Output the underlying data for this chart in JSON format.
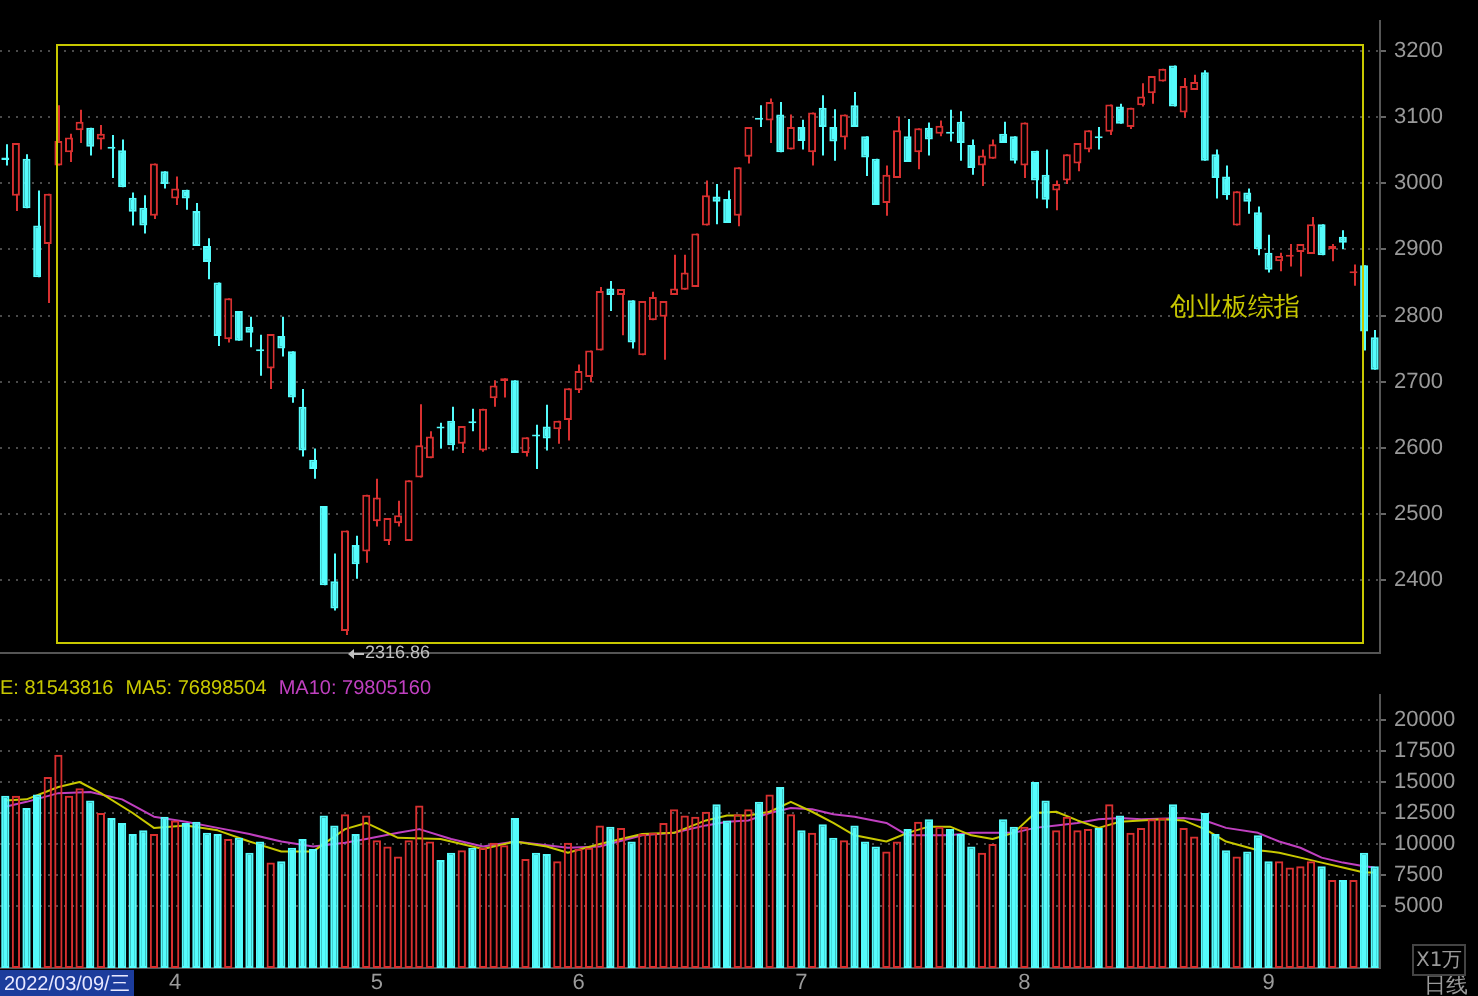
{
  "chart_data": [
    {
      "type": "candlestick",
      "categories": [
        null,
        null,
        null,
        null,
        null,
        null,
        null,
        null,
        null,
        null,
        null,
        null,
        null,
        null,
        null,
        null,
        null,
        null,
        null,
        null,
        null,
        null,
        null,
        null,
        null,
        null,
        null,
        null,
        null,
        null,
        null,
        null,
        null,
        null,
        null,
        null,
        null,
        null,
        null,
        null,
        null,
        null,
        null,
        null,
        null,
        null,
        null,
        null,
        null,
        null,
        null,
        null,
        null,
        null,
        null,
        null,
        null,
        null,
        null,
        null,
        null,
        null,
        null,
        null,
        null,
        null,
        null,
        null,
        null,
        null,
        null,
        null,
        null,
        null,
        null,
        null,
        null,
        null,
        null,
        null,
        null,
        null,
        null,
        null,
        null,
        null,
        null,
        null,
        null,
        null,
        null,
        null,
        null,
        null,
        null,
        null,
        null,
        null,
        null,
        null,
        null,
        null,
        null,
        null,
        null,
        null,
        null,
        null,
        null,
        null,
        null,
        null,
        null,
        null,
        null,
        null,
        null,
        null,
        null,
        null,
        null,
        null,
        null,
        null,
        null,
        null,
        null,
        null,
        null,
        null
      ],
      "ohlc": [
        [
          3039,
          3059,
          3027,
          3035
        ],
        [
          2981,
          3061,
          2958,
          3061
        ],
        [
          3037,
          3044,
          2962,
          2962
        ],
        [
          2936,
          2989,
          2858,
          2858
        ],
        [
          2908,
          2984,
          2819,
          2984
        ],
        [
          3027,
          3118,
          3027,
          3064
        ],
        [
          3047,
          3075,
          3032,
          3069
        ],
        [
          3080,
          3111,
          3061,
          3093
        ],
        [
          3084,
          3084,
          3042,
          3055
        ],
        [
          3066,
          3088,
          3051,
          3075
        ],
        [
          3054,
          3073,
          3008,
          3052
        ],
        [
          3050,
          3066,
          2994,
          2994
        ],
        [
          2978,
          2986,
          2936,
          2957
        ],
        [
          2963,
          2982,
          2924,
          2936
        ],
        [
          2951,
          3030,
          2946,
          3030
        ],
        [
          3018,
          3018,
          2992,
          2999
        ],
        [
          2977,
          3010,
          2967,
          2992
        ],
        [
          2990,
          2990,
          2960,
          2977
        ],
        [
          2958,
          2970,
          2905,
          2905
        ],
        [
          2905,
          2917,
          2855,
          2881
        ],
        [
          2850,
          2850,
          2754,
          2769
        ],
        [
          2764,
          2826,
          2759,
          2826
        ],
        [
          2807,
          2807,
          2762,
          2762
        ],
        [
          2783,
          2798,
          2752,
          2774
        ],
        [
          2748,
          2771,
          2709,
          2746
        ],
        [
          2720,
          2772,
          2689,
          2772
        ],
        [
          2769,
          2798,
          2738,
          2750
        ],
        [
          2746,
          2746,
          2668,
          2676
        ],
        [
          2662,
          2689,
          2587,
          2596
        ],
        [
          2582,
          2599,
          2553,
          2568
        ],
        [
          2512,
          2512,
          2392,
          2392
        ],
        [
          2398,
          2440,
          2354,
          2357
        ],
        [
          2323,
          2475,
          2316.86,
          2475
        ],
        [
          2453,
          2467,
          2402,
          2424
        ],
        [
          2443,
          2529,
          2426,
          2529
        ],
        [
          2489,
          2553,
          2481,
          2525
        ],
        [
          2459,
          2494,
          2453,
          2494
        ],
        [
          2486,
          2520,
          2481,
          2498
        ],
        [
          2459,
          2551,
          2459,
          2551
        ],
        [
          2555,
          2666,
          2555,
          2604
        ],
        [
          2584,
          2625,
          2584,
          2617
        ],
        [
          2631,
          2638,
          2599,
          2629
        ],
        [
          2641,
          2662,
          2596,
          2604
        ],
        [
          2606,
          2633,
          2592,
          2633
        ],
        [
          2639,
          2659,
          2625,
          2637
        ],
        [
          2596,
          2659,
          2594,
          2659
        ],
        [
          2675,
          2702,
          2662,
          2694
        ],
        [
          2701,
          2705,
          2676,
          2705
        ],
        [
          2702,
          2702,
          2592,
          2592
        ],
        [
          2592,
          2616,
          2587,
          2616
        ],
        [
          2619,
          2635,
          2568,
          2617
        ],
        [
          2632,
          2665,
          2596,
          2614
        ],
        [
          2628,
          2641,
          2606,
          2641
        ],
        [
          2642,
          2690,
          2611,
          2690
        ],
        [
          2687,
          2726,
          2683,
          2716
        ],
        [
          2707,
          2747,
          2699,
          2747
        ],
        [
          2747,
          2843,
          2747,
          2837
        ],
        [
          2841,
          2852,
          2807,
          2831
        ],
        [
          2831,
          2840,
          2770,
          2840
        ],
        [
          2823,
          2823,
          2750,
          2759
        ],
        [
          2740,
          2822,
          2740,
          2822
        ],
        [
          2793,
          2836,
          2793,
          2828
        ],
        [
          2798,
          2822,
          2733,
          2822
        ],
        [
          2831,
          2892,
          2831,
          2841
        ],
        [
          2839,
          2892,
          2839,
          2865
        ],
        [
          2843,
          2924,
          2843,
          2924
        ],
        [
          2936,
          3004,
          2936,
          2982
        ],
        [
          2980,
          2999,
          2938,
          2972
        ],
        [
          2976,
          2989,
          2940,
          2940
        ],
        [
          2951,
          3024,
          2935,
          3024
        ],
        [
          3040,
          3085,
          3030,
          3085
        ],
        [
          3098,
          3118,
          3085,
          3096
        ],
        [
          3095,
          3128,
          3061,
          3123
        ],
        [
          3104,
          3123,
          3047,
          3047
        ],
        [
          3051,
          3104,
          3051,
          3085
        ],
        [
          3085,
          3096,
          3051,
          3064
        ],
        [
          3047,
          3107,
          3027,
          3107
        ],
        [
          3114,
          3133,
          3042,
          3085
        ],
        [
          3085,
          3112,
          3034,
          3063
        ],
        [
          3069,
          3104,
          3051,
          3104
        ],
        [
          3118,
          3138,
          3085,
          3085
        ],
        [
          3071,
          3071,
          3011,
          3039
        ],
        [
          3037,
          3037,
          2967,
          2967
        ],
        [
          2970,
          3027,
          2951,
          3013
        ],
        [
          3008,
          3101,
          3008,
          3080
        ],
        [
          3071,
          3097,
          3032,
          3032
        ],
        [
          3047,
          3083,
          3021,
          3083
        ],
        [
          3084,
          3092,
          3042,
          3066
        ],
        [
          3075,
          3095,
          3071,
          3087
        ],
        [
          3077,
          3111,
          3063,
          3075
        ],
        [
          3093,
          3109,
          3034,
          3061
        ],
        [
          3058,
          3066,
          3013,
          3023
        ],
        [
          3027,
          3051,
          2996,
          3042
        ],
        [
          3037,
          3066,
          3037,
          3059
        ],
        [
          3075,
          3093,
          3061,
          3061
        ],
        [
          3071,
          3071,
          3030,
          3034
        ],
        [
          3027,
          3092,
          3008,
          3092
        ],
        [
          3049,
          3049,
          2977,
          3004
        ],
        [
          3013,
          3051,
          2962,
          2975
        ],
        [
          2989,
          3004,
          2959,
          2999
        ],
        [
          3004,
          3044,
          2999,
          3044
        ],
        [
          3030,
          3061,
          3018,
          3061
        ],
        [
          3051,
          3080,
          3047,
          3080
        ],
        [
          3070,
          3085,
          3051,
          3068
        ],
        [
          3078,
          3119,
          3073,
          3119
        ],
        [
          3116,
          3120,
          3090,
          3090
        ],
        [
          3085,
          3114,
          3082,
          3114
        ],
        [
          3118,
          3151,
          3116,
          3131
        ],
        [
          3136,
          3162,
          3120,
          3162
        ],
        [
          3154,
          3173,
          3154,
          3173
        ],
        [
          3178,
          3178,
          3116,
          3116
        ],
        [
          3107,
          3159,
          3099,
          3147
        ],
        [
          3141,
          3164,
          3141,
          3153
        ],
        [
          3168,
          3171,
          3034,
          3034
        ],
        [
          3044,
          3051,
          2977,
          3008
        ],
        [
          3010,
          3027,
          2975,
          2982
        ],
        [
          2936,
          2988,
          2936,
          2988
        ],
        [
          2986,
          2992,
          2954,
          2972
        ],
        [
          2956,
          2965,
          2891,
          2900
        ],
        [
          2895,
          2922,
          2865,
          2869
        ],
        [
          2882,
          2895,
          2867,
          2890
        ],
        [
          2889,
          2908,
          2874,
          2892
        ],
        [
          2896,
          2908,
          2859,
          2908
        ],
        [
          2893,
          2949,
          2893,
          2938
        ],
        [
          2938,
          2938,
          2891,
          2891
        ],
        [
          2900,
          2908,
          2882,
          2905
        ],
        [
          2919,
          2929,
          2900,
          2910
        ],
        [
          2864,
          2877,
          2845,
          2866
        ],
        [
          2876,
          2876,
          2747,
          2776
        ],
        [
          2767,
          2778,
          2718,
          2718
        ]
      ],
      "colors": [
        "#54fcfc",
        "#d83030",
        "#54fcfc",
        "#54fcfc",
        "#d83030",
        "#d83030",
        "#d83030",
        "#d83030",
        "#54fcfc",
        "#d83030",
        "#54fcfc",
        "#54fcfc",
        "#54fcfc",
        "#54fcfc",
        "#d83030",
        "#54fcfc",
        "#d83030",
        "#54fcfc",
        "#54fcfc",
        "#54fcfc",
        "#54fcfc",
        "#d83030",
        "#54fcfc",
        "#54fcfc",
        "#54fcfc",
        "#d83030",
        "#54fcfc",
        "#54fcfc",
        "#54fcfc",
        "#54fcfc",
        "#54fcfc",
        "#54fcfc",
        "#d83030",
        "#54fcfc",
        "#d83030",
        "#d83030",
        "#d83030",
        "#d83030",
        "#d83030",
        "#d83030",
        "#d83030",
        "#54fcfc",
        "#54fcfc",
        "#d83030",
        "#54fcfc",
        "#d83030",
        "#d83030",
        "#d83030",
        "#54fcfc",
        "#d83030",
        "#54fcfc",
        "#54fcfc",
        "#d83030",
        "#d83030",
        "#d83030",
        "#d83030",
        "#d83030",
        "#54fcfc",
        "#d83030",
        "#54fcfc",
        "#d83030",
        "#d83030",
        "#d83030",
        "#d83030",
        "#d83030",
        "#d83030",
        "#d83030",
        "#54fcfc",
        "#54fcfc",
        "#d83030",
        "#d83030",
        "#54fcfc",
        "#d83030",
        "#54fcfc",
        "#d83030",
        "#54fcfc",
        "#d83030",
        "#54fcfc",
        "#54fcfc",
        "#d83030",
        "#54fcfc",
        "#54fcfc",
        "#54fcfc",
        "#d83030",
        "#d83030",
        "#54fcfc",
        "#d83030",
        "#54fcfc",
        "#d83030",
        "#54fcfc",
        "#54fcfc",
        "#54fcfc",
        "#d83030",
        "#d83030",
        "#54fcfc",
        "#54fcfc",
        "#d83030",
        "#54fcfc",
        "#54fcfc",
        "#d83030",
        "#d83030",
        "#d83030",
        "#d83030",
        "#54fcfc",
        "#d83030",
        "#54fcfc",
        "#d83030",
        "#d83030",
        "#d83030",
        "#d83030",
        "#54fcfc",
        "#d83030",
        "#d83030",
        "#54fcfc",
        "#54fcfc",
        "#54fcfc",
        "#d83030",
        "#54fcfc",
        "#54fcfc",
        "#54fcfc",
        "#d83030",
        "#d83030",
        "#d83030",
        "#d83030",
        "#54fcfc",
        "#d83030",
        "#54fcfc",
        "#d83030",
        "#54fcfc",
        "#54fcfc"
      ],
      "ylim": [
        2290,
        3245
      ],
      "yticks": [
        2400,
        2500,
        2600,
        2700,
        2800,
        2900,
        3000,
        3100,
        3200
      ],
      "grid": "y",
      "tick_labels": "y",
      "annotations": [
        "创业板综指",
        "2316.86"
      ]
    },
    {
      "type": "bar",
      "categories": [
        null,
        null,
        null,
        null,
        null,
        null,
        null,
        null,
        null,
        null,
        null,
        null,
        null,
        null,
        null,
        null,
        "4",
        null,
        null,
        null,
        null,
        null,
        null,
        null,
        null,
        null,
        null,
        null,
        null,
        null,
        null,
        null,
        null,
        null,
        null,
        "5",
        null,
        null,
        null,
        null,
        null,
        null,
        null,
        null,
        null,
        null,
        null,
        null,
        null,
        null,
        null,
        null,
        null,
        null,
        "6",
        null,
        null,
        null,
        null,
        null,
        null,
        null,
        null,
        null,
        null,
        null,
        null,
        null,
        null,
        null,
        null,
        null,
        null,
        null,
        null,
        "7",
        null,
        null,
        null,
        null,
        null,
        null,
        null,
        null,
        null,
        null,
        null,
        null,
        null,
        null,
        null,
        null,
        null,
        null,
        null,
        null,
        "8",
        null,
        null,
        null,
        null,
        null,
        null,
        null,
        null,
        null,
        null,
        null,
        null,
        null,
        null,
        null,
        null,
        null,
        null,
        null,
        null,
        null,
        null,
        "9",
        null,
        null,
        null,
        null,
        null,
        null,
        null,
        null,
        null,
        null
      ],
      "series": [
        {
          "type": "bar",
          "values": [
            13900,
            13900,
            12900,
            14000,
            15400,
            17200,
            13900,
            14500,
            13500,
            12500,
            12100,
            11700,
            10800,
            11100,
            10800,
            12200,
            11900,
            11700,
            11800,
            10900,
            10800,
            10400,
            10500,
            9300,
            10200,
            8500,
            8600,
            9700,
            10400,
            9600,
            12300,
            11500,
            12400,
            10800,
            12300,
            10300,
            9800,
            9000,
            10300,
            13100,
            10200,
            8700,
            9300,
            9500,
            9700,
            9700,
            10100,
            9900,
            12100,
            8800,
            9300,
            9200,
            8600,
            10100,
            9600,
            9700,
            11500,
            11400,
            11300,
            10200,
            10800,
            10900,
            11700,
            12800,
            12300,
            12200,
            12600,
            13200,
            11900,
            12400,
            12800,
            13400,
            14000,
            14600,
            12400,
            11100,
            10900,
            11600,
            10500,
            10300,
            11500,
            10200,
            9800,
            9400,
            10200,
            11200,
            11800,
            12000,
            11400,
            11200,
            10800,
            9800,
            9300,
            10000,
            12000,
            11400,
            11400,
            15000,
            13500,
            11100,
            12200,
            11100,
            11200,
            11300,
            13200,
            12300,
            10900,
            11300,
            12000,
            12100,
            13200,
            11300,
            10600,
            12500,
            10800,
            9500,
            9000,
            9400,
            10700,
            8600,
            8600,
            8100,
            8200,
            8600,
            8200,
            7100,
            7100,
            7100,
            9300,
            8200
          ],
          "colors": [
            "#54fcfc",
            "#d83030",
            "#54fcfc",
            "#54fcfc",
            "#d83030",
            "#d83030",
            "#d83030",
            "#d83030",
            "#54fcfc",
            "#d83030",
            "#54fcfc",
            "#54fcfc",
            "#54fcfc",
            "#54fcfc",
            "#d83030",
            "#54fcfc",
            "#d83030",
            "#54fcfc",
            "#54fcfc",
            "#54fcfc",
            "#54fcfc",
            "#d83030",
            "#54fcfc",
            "#54fcfc",
            "#54fcfc",
            "#d83030",
            "#54fcfc",
            "#54fcfc",
            "#54fcfc",
            "#54fcfc",
            "#54fcfc",
            "#54fcfc",
            "#d83030",
            "#54fcfc",
            "#d83030",
            "#d83030",
            "#d83030",
            "#d83030",
            "#d83030",
            "#d83030",
            "#d83030",
            "#54fcfc",
            "#54fcfc",
            "#d83030",
            "#54fcfc",
            "#d83030",
            "#d83030",
            "#d83030",
            "#54fcfc",
            "#d83030",
            "#54fcfc",
            "#54fcfc",
            "#d83030",
            "#d83030",
            "#d83030",
            "#d83030",
            "#d83030",
            "#54fcfc",
            "#d83030",
            "#54fcfc",
            "#d83030",
            "#d83030",
            "#d83030",
            "#d83030",
            "#d83030",
            "#d83030",
            "#d83030",
            "#54fcfc",
            "#54fcfc",
            "#d83030",
            "#d83030",
            "#54fcfc",
            "#d83030",
            "#54fcfc",
            "#d83030",
            "#54fcfc",
            "#d83030",
            "#54fcfc",
            "#54fcfc",
            "#d83030",
            "#54fcfc",
            "#54fcfc",
            "#54fcfc",
            "#d83030",
            "#d83030",
            "#54fcfc",
            "#d83030",
            "#54fcfc",
            "#d83030",
            "#54fcfc",
            "#54fcfc",
            "#54fcfc",
            "#d83030",
            "#d83030",
            "#54fcfc",
            "#54fcfc",
            "#d83030",
            "#54fcfc",
            "#54fcfc",
            "#d83030",
            "#d83030",
            "#d83030",
            "#d83030",
            "#54fcfc",
            "#d83030",
            "#54fcfc",
            "#d83030",
            "#d83030",
            "#d83030",
            "#d83030",
            "#54fcfc",
            "#d83030",
            "#d83030",
            "#54fcfc",
            "#54fcfc",
            "#54fcfc",
            "#d83030",
            "#54fcfc",
            "#54fcfc",
            "#54fcfc",
            "#d83030",
            "#d83030",
            "#d83030",
            "#d83030",
            "#54fcfc",
            "#d83030",
            "#54fcfc",
            "#d83030",
            "#54fcfc",
            "#54fcfc"
          ]
        },
        {
          "type": "line",
          "color": "#c8c800",
          "values": [
            13500,
            null,
            13600,
            null,
            null,
            14600,
            null,
            15000,
            null,
            14100,
            null,
            null,
            12500,
            null,
            11300,
            null,
            null,
            11500,
            null,
            null,
            11100,
            null,
            null,
            10200,
            null,
            null,
            9400,
            null,
            null,
            9400,
            null,
            null,
            11200,
            null,
            11700,
            null,
            null,
            10500,
            null,
            null,
            null,
            10400,
            null,
            null,
            null,
            9600,
            null,
            null,
            10200,
            null,
            null,
            9800,
            null,
            9300,
            null,
            null,
            10000,
            null,
            null,
            null,
            10800,
            null,
            null,
            10900,
            null,
            null,
            11900,
            null,
            12300,
            null,
            12300,
            null,
            12600,
            null,
            13400,
            null,
            12600,
            null,
            11700,
            null,
            10700,
            null,
            null,
            10200,
            null,
            10900,
            null,
            11400,
            null,
            11400,
            null,
            10700,
            null,
            10400,
            null,
            10900,
            null,
            12500,
            null,
            12600,
            null,
            11900,
            null,
            11300,
            null,
            11800,
            null,
            11900,
            null,
            12000,
            null,
            11900,
            null,
            11200,
            null,
            10200,
            null,
            null,
            9500,
            null,
            9300,
            null,
            8900,
            null,
            8500,
            null,
            8100,
            null,
            7700,
            7700
          ]
        },
        {
          "type": "line",
          "color": "#c040c0",
          "values": [
            13000,
            null,
            13400,
            null,
            null,
            14100,
            null,
            null,
            14200,
            null,
            null,
            13600,
            null,
            null,
            12200,
            null,
            null,
            11800,
            null,
            null,
            11300,
            null,
            null,
            10800,
            null,
            null,
            10200,
            null,
            null,
            9800,
            null,
            null,
            10100,
            null,
            10400,
            null,
            null,
            10900,
            null,
            11200,
            null,
            null,
            10400,
            null,
            null,
            9800,
            null,
            null,
            10200,
            null,
            null,
            null,
            null,
            9700,
            null,
            null,
            9800,
            null,
            null,
            null,
            10700,
            null,
            null,
            10900,
            null,
            null,
            11500,
            null,
            11800,
            null,
            11900,
            null,
            12500,
            null,
            12900,
            null,
            12800,
            null,
            12400,
            null,
            12200,
            null,
            null,
            11700,
            null,
            10700,
            null,
            10700,
            null,
            10700,
            null,
            10900,
            null,
            10900,
            null,
            10900,
            null,
            11300,
            null,
            11500,
            null,
            11700,
            null,
            12000,
            null,
            12100,
            null,
            12000,
            null,
            null,
            null,
            12100,
            null,
            11900,
            null,
            11300,
            null,
            null,
            10900,
            null,
            10200,
            null,
            9700,
            null,
            8900,
            null,
            8500,
            null,
            8200,
            8100
          ]
        }
      ],
      "ylim": [
        0,
        22000
      ],
      "yticks": [
        5000,
        7500,
        10000,
        12500,
        15000,
        17500,
        20000
      ],
      "grid": "y",
      "ylabel": "X1万",
      "annotations": [
        "E: 81543816",
        "MA5: 76898504",
        "MA10: 79805160",
        "2022/03/09/三",
        "日线"
      ]
    }
  ]
}
